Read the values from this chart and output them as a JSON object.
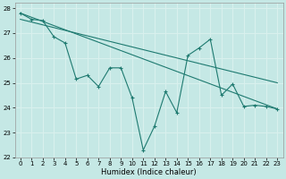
{
  "xlabel": "Humidex (Indice chaleur)",
  "xlim": [
    -0.5,
    23.5
  ],
  "ylim": [
    22,
    28.2
  ],
  "yticks": [
    22,
    23,
    24,
    25,
    26,
    27,
    28
  ],
  "xticks": [
    0,
    1,
    2,
    3,
    4,
    5,
    6,
    7,
    8,
    9,
    10,
    11,
    12,
    13,
    14,
    15,
    16,
    17,
    18,
    19,
    20,
    21,
    22,
    23
  ],
  "bg_color": "#c5e8e5",
  "line_color": "#1e7a70",
  "grid_color": "#d8f0ed",
  "line1_x": [
    0,
    1,
    2,
    3,
    4,
    5,
    6,
    7,
    8,
    9,
    10,
    11,
    12,
    13,
    14,
    15,
    16,
    17,
    18,
    19,
    20,
    21,
    22,
    23
  ],
  "line1_y": [
    27.8,
    27.55,
    27.5,
    26.85,
    26.6,
    25.15,
    25.3,
    24.85,
    25.6,
    25.6,
    24.4,
    22.3,
    23.25,
    24.65,
    23.8,
    26.1,
    26.4,
    26.75,
    24.5,
    24.95,
    24.05,
    24.1,
    24.05,
    23.95
  ],
  "line2_x": [
    0,
    23
  ],
  "line2_y": [
    27.8,
    23.95
  ],
  "line3_x": [
    0,
    23
  ],
  "line3_y": [
    27.55,
    25.0
  ],
  "xlabel_fontsize": 6.0,
  "tick_fontsize": 5.0
}
